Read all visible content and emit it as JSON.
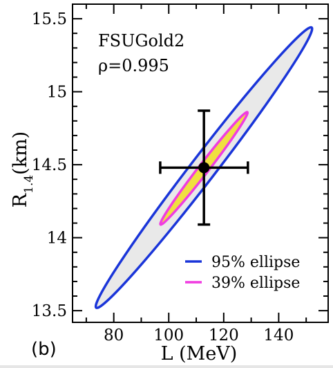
{
  "chart_data": {
    "type": "scatter",
    "panel_label": "(b)",
    "xlabel": "L (MeV)",
    "ylabel_main": "R",
    "ylabel_sub": "1.4",
    "ylabel_unit": "(km)",
    "xlim": [
      65,
      158
    ],
    "ylim": [
      13.42,
      15.6
    ],
    "xticks": [
      80,
      100,
      120,
      140
    ],
    "yticks": [
      13.5,
      14.0,
      14.5,
      15.0,
      15.5
    ],
    "ytick_labels": [
      "13.5",
      "14",
      "14.5",
      "15",
      "15.5"
    ],
    "annotation_model": "FSUGold2",
    "annotation_rho": "ρ=0.995",
    "point": {
      "x": 112.8,
      "y": 14.48,
      "xerr": [
        96.9,
        128.8
      ],
      "yerr": [
        14.09,
        14.87
      ]
    },
    "ellipses": [
      {
        "name": "95% ellipse",
        "color": "#1a35d9",
        "fill": "#e9e9e9",
        "end1": {
          "x": 73.6,
          "y": 13.52
        },
        "end2": {
          "x": 152.0,
          "y": 15.44
        },
        "width_ratio": 0.035
      },
      {
        "name": "39% ellipse",
        "color": "#f03ce0",
        "fill": "#f0e040",
        "end1": {
          "x": 97.0,
          "y": 14.09
        },
        "end2": {
          "x": 128.6,
          "y": 14.86
        },
        "width_ratio": 0.035
      }
    ],
    "legend": {
      "position": "bottom-right",
      "entries": [
        {
          "label": "95% ellipse",
          "color": "#1a35d9"
        },
        {
          "label": "39% ellipse",
          "color": "#f03ce0"
        }
      ]
    }
  }
}
